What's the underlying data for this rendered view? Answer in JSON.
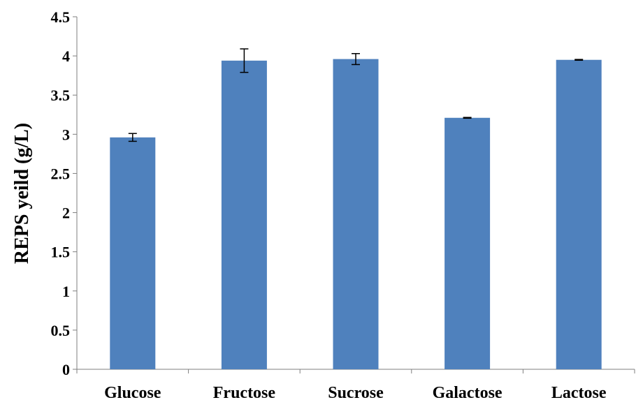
{
  "chart_data": {
    "type": "bar",
    "title": "",
    "xlabel": "",
    "ylabel": "REPS yeild (g/L)",
    "ylim": [
      0,
      4.5
    ],
    "yticks": [
      "0",
      "0.5",
      "1",
      "1.5",
      "2",
      "2.5",
      "3",
      "3.5",
      "4",
      "4.5"
    ],
    "categories": [
      "Glucose",
      "Fructose",
      "Sucrose",
      "Galactose",
      "Lactose"
    ],
    "values": [
      2.96,
      3.94,
      3.96,
      3.21,
      3.95
    ],
    "errors": [
      0.05,
      0.15,
      0.07,
      0.005,
      0.005
    ],
    "grid": false,
    "legend": "none",
    "colors": {
      "bar": "#4F81BD",
      "axis": "#7f7f7f",
      "error": "#000000"
    }
  }
}
